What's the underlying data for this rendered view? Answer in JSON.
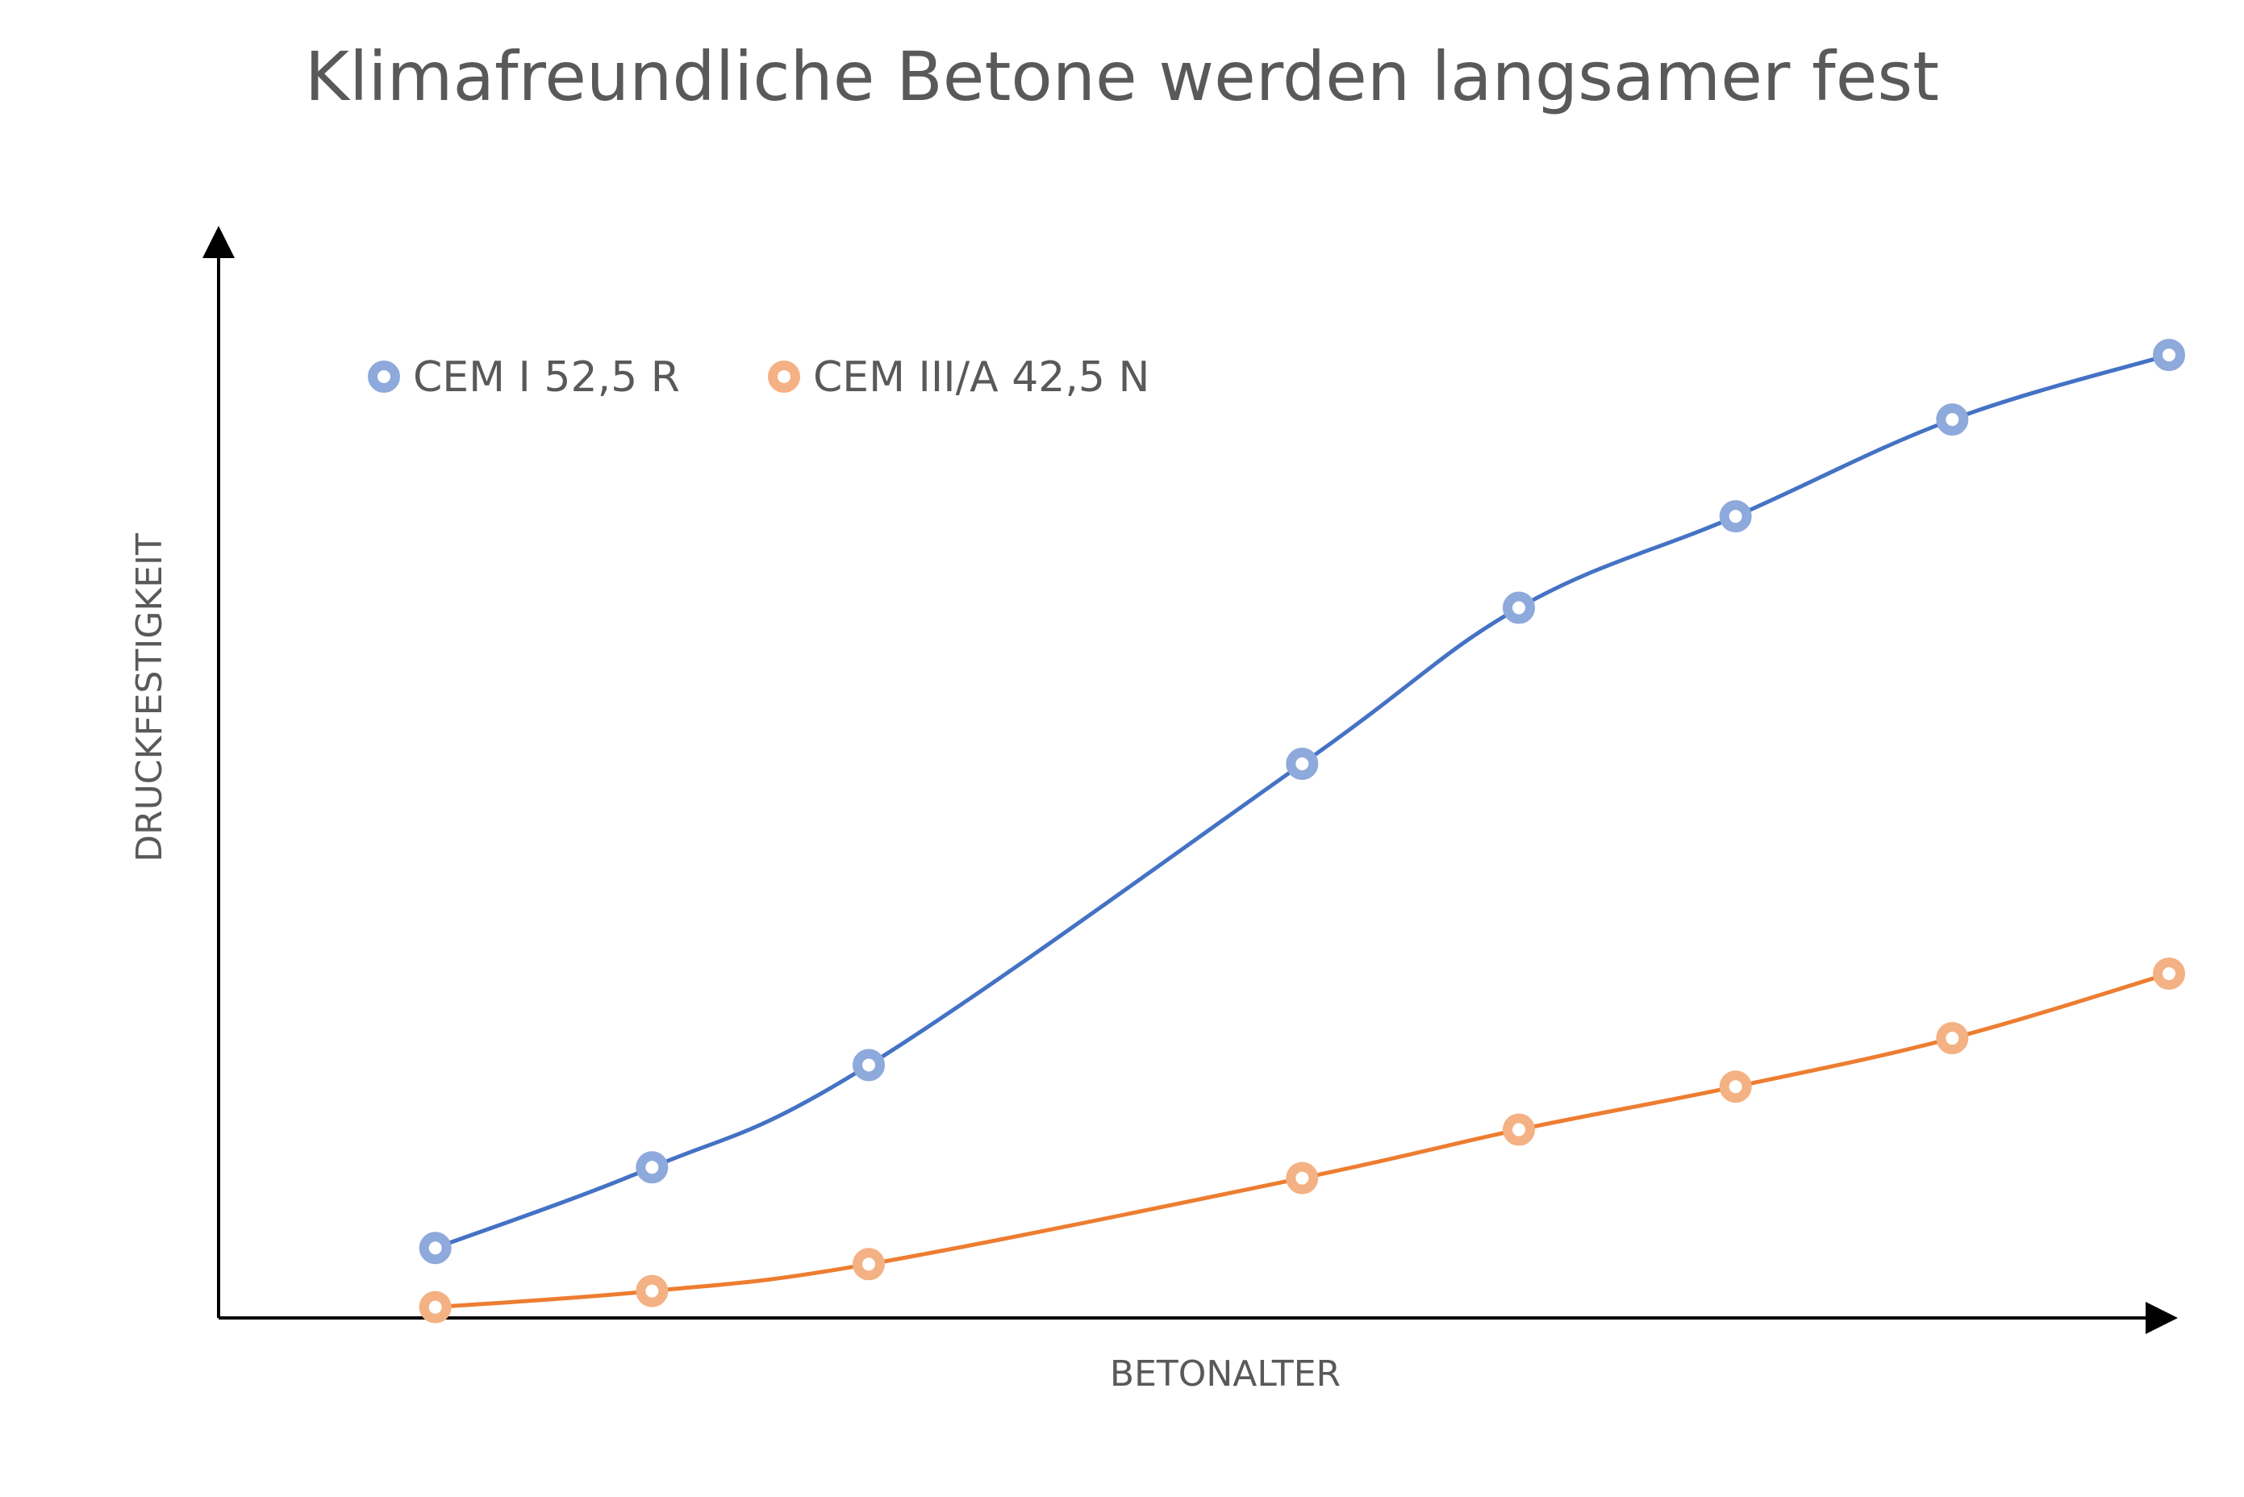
{
  "chart_data": {
    "type": "scatter",
    "title": "Klimafreundliche Betone werden langsamer fest",
    "xlabel": "BETONALTER",
    "ylabel": "DRUCKFESTIGKEIT",
    "x_tick_labels": false,
    "y_tick_labels": false,
    "grid": false,
    "legend": "top-left",
    "xlim": [
      0,
      9
    ],
    "ylim": [
      0,
      100
    ],
    "series": [
      {
        "name": "CEM I 52,5 R",
        "marker_color": "#8EA9DB",
        "line_color": "#4472C4",
        "x": [
          1,
          2,
          3,
          5,
          6,
          7,
          8,
          9
        ],
        "y": [
          6.5,
          14,
          23.5,
          51.5,
          66,
          74.5,
          83.5,
          89.5
        ]
      },
      {
        "name": "CEM III/A 42,5 N",
        "marker_color": "#F4B183",
        "line_color": "#ED7D31",
        "x": [
          1,
          2,
          3,
          5,
          6,
          7,
          8,
          9
        ],
        "y": [
          1,
          2.5,
          5,
          13,
          17.5,
          21.5,
          26,
          32
        ]
      }
    ]
  }
}
